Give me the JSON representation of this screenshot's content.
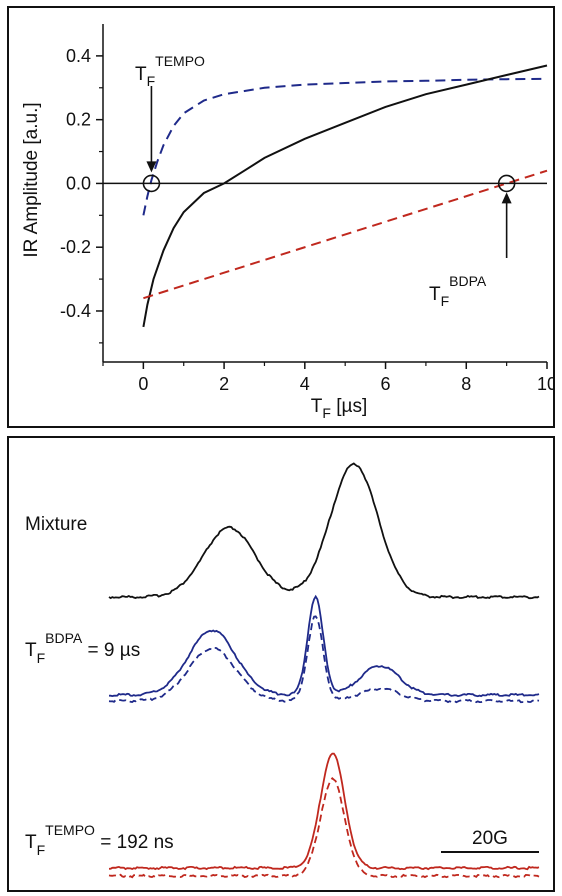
{
  "chart_data": [
    {
      "type": "line",
      "xlabel": "T",
      "xlabel_sub": "F",
      "xlabel_unit": " [µs]",
      "ylabel": "IR Amplitude [a.u.]",
      "xlim": [
        -1,
        10
      ],
      "ylim": [
        -0.56,
        0.5
      ],
      "xticks": [
        "0",
        "2",
        "4",
        "6",
        "8",
        "10"
      ],
      "xtick_values": [
        0,
        2,
        4,
        6,
        8,
        10
      ],
      "yticks": [
        "0.4",
        "0.2",
        "0.0",
        "-0.2",
        "-0.4"
      ],
      "ytick_values": [
        0.4,
        0.2,
        0.0,
        -0.2,
        -0.4
      ],
      "series": [
        {
          "style": "dashed",
          "color": "#1f2a8a",
          "x": [
            0.0,
            0.1,
            0.2,
            0.35,
            0.5,
            0.75,
            1.0,
            1.5,
            2,
            3,
            4,
            5,
            6,
            7,
            8,
            9,
            10
          ],
          "y": [
            -0.1,
            -0.04,
            0.01,
            0.07,
            0.12,
            0.18,
            0.22,
            0.26,
            0.28,
            0.3,
            0.31,
            0.315,
            0.32,
            0.322,
            0.325,
            0.327,
            0.328
          ]
        },
        {
          "style": "solid",
          "color": "#111111",
          "x": [
            0.0,
            0.1,
            0.25,
            0.5,
            0.75,
            1.0,
            1.5,
            2.0,
            2.5,
            3,
            4,
            5,
            6,
            7,
            8,
            9,
            10
          ],
          "y": [
            -0.45,
            -0.38,
            -0.3,
            -0.21,
            -0.14,
            -0.09,
            -0.03,
            0.0,
            0.04,
            0.08,
            0.14,
            0.19,
            0.24,
            0.28,
            0.31,
            0.34,
            0.37
          ]
        },
        {
          "style": "dashed",
          "color": "#c0281e",
          "x": [
            0,
            10
          ],
          "y": [
            -0.36,
            0.04
          ]
        }
      ],
      "annotations": [
        {
          "text": "T",
          "sub": "F",
          "sup": "TEMPO",
          "x": 0.2,
          "y": 0.0
        },
        {
          "text": "T",
          "sub": "F",
          "sup": "BDPA",
          "x": 9.0,
          "y": 0.0
        }
      ]
    },
    {
      "type": "line",
      "series": [
        {
          "name": "Mixture",
          "color": "#111111",
          "style": "solid",
          "peaks": [
            {
              "center": 0.28,
              "width": 0.06,
              "amp": 0.52
            },
            {
              "center": 0.57,
              "width": 0.055,
              "amp": 1.0
            }
          ]
        },
        {
          "color": "#1f2a8a",
          "style": "solid",
          "peaks": [
            {
              "center": 0.24,
              "width": 0.055,
              "amp": 0.66
            },
            {
              "center": 0.48,
              "width": 0.018,
              "amp": 1.0
            },
            {
              "center": 0.63,
              "width": 0.045,
              "amp": 0.3
            }
          ]
        },
        {
          "color": "#1f2a8a",
          "style": "dashed",
          "peaks": [
            {
              "center": 0.24,
              "width": 0.055,
              "amp": 0.6
            },
            {
              "center": 0.48,
              "width": 0.018,
              "amp": 0.96
            },
            {
              "center": 0.63,
              "width": 0.045,
              "amp": 0.14
            }
          ]
        },
        {
          "color": "#c0281e",
          "style": "solid",
          "peaks": [
            {
              "center": 0.52,
              "width": 0.028,
              "amp": 1.0
            }
          ]
        },
        {
          "color": "#c0281e",
          "style": "dashed",
          "peaks": [
            {
              "center": 0.52,
              "width": 0.028,
              "amp": 0.94
            }
          ]
        }
      ],
      "labels": {
        "mixture": "Mixture",
        "bdpa_t": "T",
        "bdpa_sub": "F",
        "bdpa_sup": "BDPA",
        "bdpa_value": " = 9 µs",
        "tempo_t": "T",
        "tempo_sub": "F",
        "tempo_sup": "TEMPO",
        "tempo_value": " = 192 ns"
      },
      "scale_bar": "20G"
    }
  ]
}
